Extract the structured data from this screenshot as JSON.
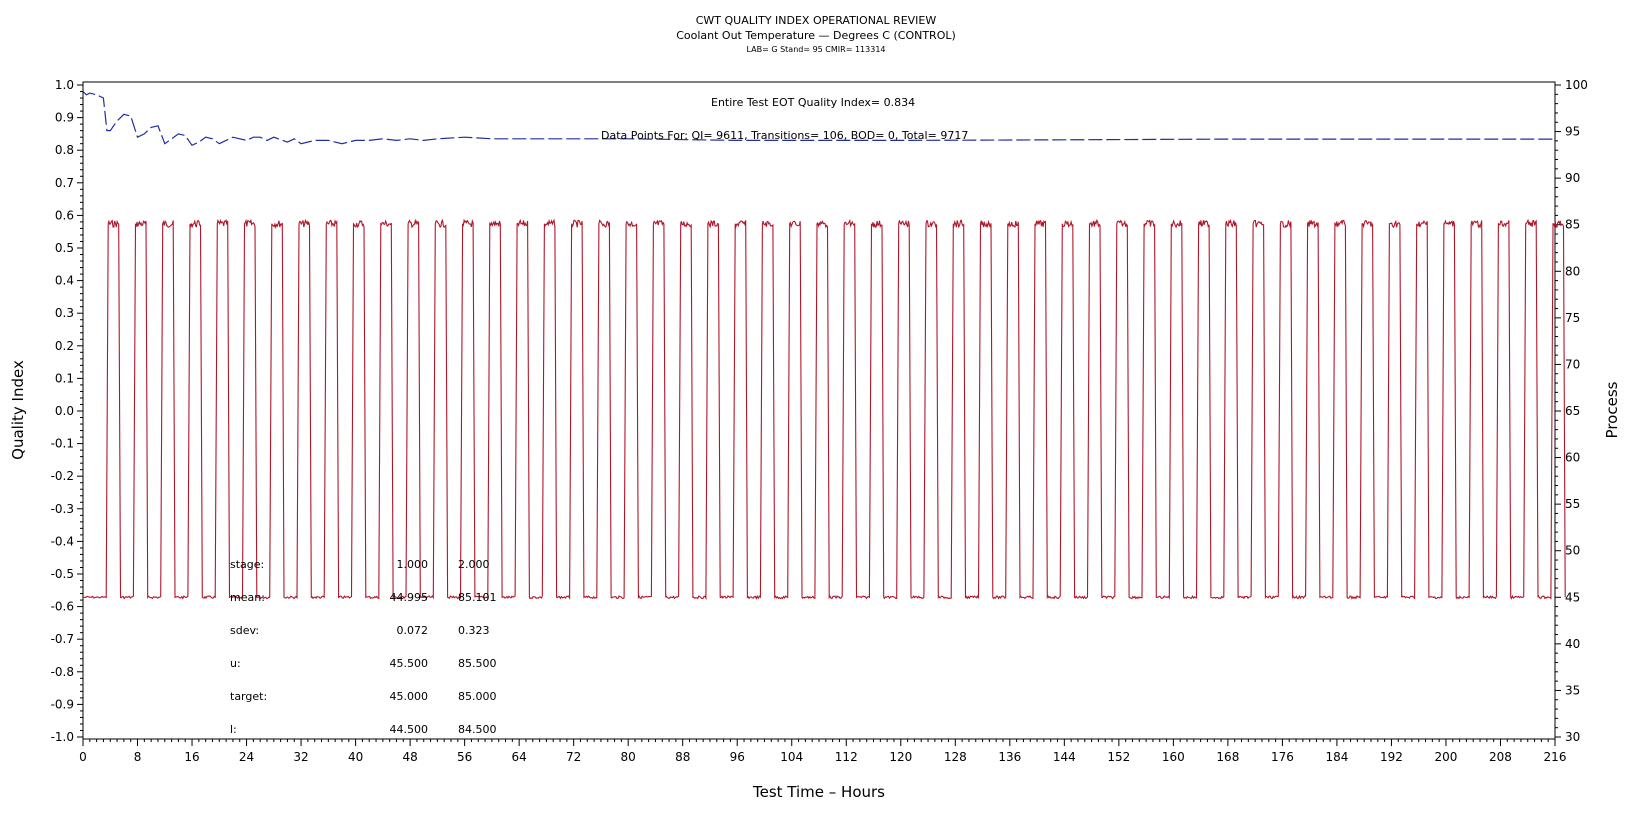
{
  "header": {
    "title": "CWT QUALITY INDEX OPERATIONAL REVIEW",
    "subtitle": "Coolant Out Temperature — Degrees C (CONTROL)",
    "subtitle2": "LAB= G Stand= 95 CMIR= 113314"
  },
  "annotations": {
    "quality_index": "Entire Test EOT Quality Index=   0.834",
    "data_points": "Data Points For: QI=  9611, Transitions=   106, BOD=     0, Total=  9717"
  },
  "stats_table": {
    "rows": [
      {
        "label": "stage:",
        "v1": "1.000",
        "v2": "2.000"
      },
      {
        "label": "mean:",
        "v1": "44.995",
        "v2": "85.101"
      },
      {
        "label": "sdev:",
        "v1": "0.072",
        "v2": "0.323"
      },
      {
        "label": "u:",
        "v1": "45.500",
        "v2": "85.500"
      },
      {
        "label": "target:",
        "v1": "45.000",
        "v2": "85.000"
      },
      {
        "label": "l:",
        "v1": "44.500",
        "v2": "84.500"
      }
    ]
  },
  "chart_data": {
    "type": "line",
    "xlabel": "Test Time – Hours",
    "ylabel": "Quality Index",
    "y2label": "Process",
    "xlim": [
      0,
      216
    ],
    "ylim": [
      -1.0,
      1.0
    ],
    "y2lim": [
      30,
      100
    ],
    "xticks": [
      0,
      8,
      16,
      24,
      32,
      40,
      48,
      56,
      64,
      72,
      80,
      88,
      96,
      104,
      112,
      120,
      128,
      136,
      144,
      152,
      160,
      168,
      176,
      184,
      192,
      200,
      208,
      216
    ],
    "yticks": [
      "1.0",
      "0.9",
      "0.8",
      "0.7",
      "0.6",
      "0.5",
      "0.4",
      "0.3",
      "0.2",
      "0.1",
      "0.0",
      "-0.1",
      "-0.2",
      "-0.3",
      "-0.4",
      "-0.5",
      "-0.6",
      "-0.7",
      "-0.8",
      "-0.9",
      "-1.0"
    ],
    "y2ticks": [
      100,
      95,
      90,
      85,
      80,
      75,
      70,
      65,
      60,
      55,
      50,
      45,
      40,
      35,
      30
    ],
    "grid": false,
    "series": [
      {
        "axis": "left",
        "style": "dashed",
        "color": "#1f2fa0",
        "x": [
          0,
          0.5,
          1,
          2,
          3,
          3.5,
          4,
          5,
          6,
          7,
          8,
          9,
          10,
          11,
          12,
          13,
          14,
          15,
          16,
          17,
          18,
          19,
          20,
          21,
          22,
          24,
          25,
          26,
          27,
          28,
          30,
          31,
          32,
          34,
          36,
          38,
          40,
          42,
          44,
          46,
          48,
          50,
          52,
          56,
          60,
          64,
          72,
          80,
          96,
          120,
          144,
          168,
          192,
          216
        ],
        "y": [
          0.98,
          0.97,
          0.975,
          0.97,
          0.96,
          0.86,
          0.86,
          0.89,
          0.91,
          0.905,
          0.84,
          0.85,
          0.87,
          0.875,
          0.82,
          0.835,
          0.85,
          0.845,
          0.815,
          0.825,
          0.84,
          0.835,
          0.82,
          0.83,
          0.84,
          0.83,
          0.84,
          0.84,
          0.83,
          0.84,
          0.825,
          0.835,
          0.82,
          0.83,
          0.83,
          0.82,
          0.83,
          0.83,
          0.835,
          0.83,
          0.835,
          0.83,
          0.835,
          0.84,
          0.835,
          0.835,
          0.835,
          0.835,
          0.83,
          0.83,
          0.832,
          0.834,
          0.834,
          0.834
        ]
      },
      {
        "axis": "right",
        "style": "solid",
        "color": "#b0162a",
        "cycle_hours": 4,
        "low_value": 45.0,
        "high_value": 85.1,
        "cycles_start_hour": 3.5,
        "cycles_end_hour": 216,
        "first_low_until_hour": 3.5
      }
    ]
  }
}
